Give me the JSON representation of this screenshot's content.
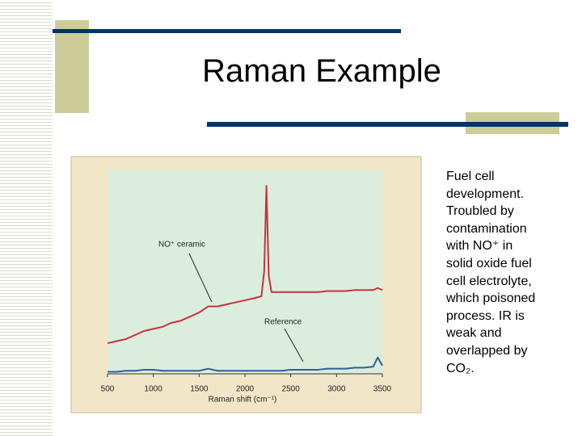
{
  "slide": {
    "title": "Raman Example",
    "body_lines": [
      "Fuel cell",
      "development.",
      "Troubled by",
      "contamination",
      "with NO⁺ in",
      "solid oxide fuel",
      "cell electrolyte,",
      "which poisoned",
      "process.  IR is",
      "weak and",
      "overlapped by",
      "CO₂."
    ]
  },
  "chart_data": {
    "type": "line",
    "x_label": "Raman shift (cm⁻¹)",
    "annotations": [
      "NO⁺ ceramic",
      "Reference"
    ],
    "x": [
      500,
      600,
      700,
      800,
      900,
      1000,
      1100,
      1200,
      1300,
      1400,
      1500,
      1600,
      1700,
      1800,
      1900,
      2000,
      2100,
      2180,
      2210,
      2235,
      2260,
      2290,
      2400,
      2500,
      2600,
      2700,
      2800,
      2900,
      3000,
      3100,
      3200,
      3300,
      3400,
      3450,
      3500
    ],
    "series": [
      {
        "color": "#c8323c",
        "values": [
          15,
          16,
          17,
          19,
          21,
          22,
          23,
          25,
          26,
          28,
          30,
          33,
          33,
          34,
          35,
          36,
          37,
          38,
          50,
          92,
          48,
          40,
          40,
          40,
          40,
          40,
          40,
          40.5,
          40.5,
          40.5,
          41,
          41,
          41,
          42,
          41
        ]
      },
      {
        "color": "#2b5f9e",
        "values": [
          1,
          1,
          1.5,
          1.5,
          2,
          2,
          1.5,
          1.5,
          1.5,
          1.5,
          1.5,
          2.5,
          1.5,
          1.5,
          1.5,
          1.5,
          1.5,
          1.5,
          1.5,
          1.5,
          1.5,
          1.5,
          1.5,
          2,
          2,
          2,
          2,
          2.5,
          2.5,
          2.5,
          3,
          3,
          3.5,
          8,
          4
        ]
      }
    ],
    "xlim": [
      500,
      3500
    ],
    "xticks": [
      500,
      1000,
      1500,
      2000,
      2500,
      3000,
      3500
    ],
    "ylim": [
      0,
      100
    ]
  }
}
